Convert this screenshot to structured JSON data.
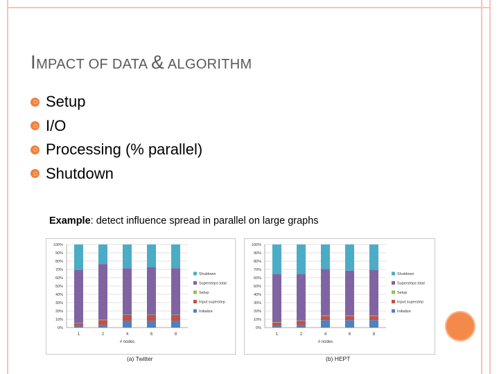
{
  "slide": {
    "title_first_letter": "I",
    "title_rest_1": "MPACT OF DATA ",
    "title_amp": "&",
    "title_rest_2": " ALGORITHM",
    "bullets": [
      "Setup",
      "I/O",
      "Processing (% parallel)",
      "Shutdown"
    ],
    "example_label": "Example",
    "example_text": ": detect influence spread in parallel on large graphs",
    "accent_color": "#f0803b",
    "frame_color": "#f4c4b6"
  },
  "chart_data": [
    {
      "type": "bar",
      "stacked": true,
      "caption": "(a) Twitter",
      "xlabel": "# nodes",
      "categories": [
        "1",
        "2",
        "4",
        "6",
        "8"
      ],
      "yticks": [
        "0%",
        "10%",
        "20%",
        "30%",
        "40%",
        "50%",
        "60%",
        "70%",
        "80%",
        "90%",
        "100%"
      ],
      "ylim": [
        0,
        100
      ],
      "legend_position": "right",
      "series": [
        {
          "name": "Initialize",
          "color": "#4f81bd",
          "values": [
            2,
            3,
            8,
            8,
            8
          ]
        },
        {
          "name": "Input superstep",
          "color": "#c0504d",
          "values": [
            3,
            6,
            7,
            7,
            7
          ]
        },
        {
          "name": "Setup",
          "color": "#9bbb59",
          "values": [
            0.5,
            0.5,
            0.5,
            0.5,
            0.5
          ]
        },
        {
          "name": "Supersteps total",
          "color": "#8064a2",
          "values": [
            64,
            67,
            56,
            57,
            56
          ]
        },
        {
          "name": "Shutdown",
          "color": "#4bacc6",
          "values": [
            30.5,
            23.5,
            28.5,
            27.5,
            28.5
          ]
        }
      ]
    },
    {
      "type": "bar",
      "stacked": true,
      "caption": "(b) HEPT",
      "xlabel": "# nodes",
      "categories": [
        "1",
        "2",
        "4",
        "6",
        "8"
      ],
      "yticks": [
        "0%",
        "10%",
        "20%",
        "30%",
        "40%",
        "50%",
        "60%",
        "70%",
        "80%",
        "90%",
        "100%"
      ],
      "ylim": [
        0,
        100
      ],
      "legend_position": "right",
      "series": [
        {
          "name": "Initialize",
          "color": "#4f81bd",
          "values": [
            2,
            3,
            9,
            9,
            9
          ]
        },
        {
          "name": "Input superstep",
          "color": "#c0504d",
          "values": [
            4,
            5,
            5,
            5,
            5
          ]
        },
        {
          "name": "Setup",
          "color": "#9bbb59",
          "values": [
            0.5,
            0.5,
            0.5,
            0.5,
            0.5
          ]
        },
        {
          "name": "Supersteps total",
          "color": "#8064a2",
          "values": [
            58,
            56,
            56,
            54,
            55
          ]
        },
        {
          "name": "Shutdown",
          "color": "#4bacc6",
          "values": [
            35.5,
            35.5,
            29.5,
            31.5,
            30.5
          ]
        }
      ]
    }
  ]
}
